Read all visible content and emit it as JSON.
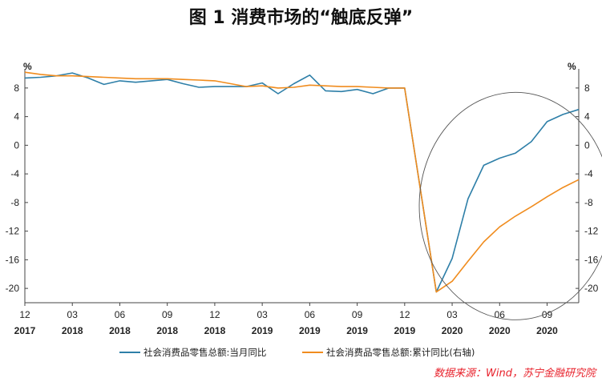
{
  "chart_data": {
    "type": "line",
    "title": "图 1   消费市场的“触底反弹”",
    "left_axis": {
      "unit": "%",
      "ylim": [
        -22,
        10
      ],
      "ticks": [
        8,
        4,
        0,
        -4,
        -8,
        -12,
        -16,
        -20
      ]
    },
    "right_axis": {
      "unit": "%",
      "ylim": [
        -22,
        10
      ],
      "ticks": [
        8,
        4,
        0,
        -4,
        -8,
        -12,
        -16,
        -20
      ]
    },
    "x_ticks": [
      {
        "month": "12",
        "year": "2017"
      },
      {
        "month": "03",
        "year": "2018"
      },
      {
        "month": "06",
        "year": "2018"
      },
      {
        "month": "09",
        "year": "2018"
      },
      {
        "month": "12",
        "year": "2018"
      },
      {
        "month": "03",
        "year": "2019"
      },
      {
        "month": "06",
        "year": "2019"
      },
      {
        "month": "09",
        "year": "2019"
      },
      {
        "month": "12",
        "year": "2019"
      },
      {
        "month": "03",
        "year": "2020"
      },
      {
        "month": "06",
        "year": "2020"
      },
      {
        "month": "09",
        "year": "2020"
      }
    ],
    "x": [
      "2017-12",
      "2018-01",
      "2018-02",
      "2018-03",
      "2018-04",
      "2018-05",
      "2018-06",
      "2018-07",
      "2018-08",
      "2018-09",
      "2018-10",
      "2018-11",
      "2018-12",
      "2019-01",
      "2019-02",
      "2019-03",
      "2019-04",
      "2019-05",
      "2019-06",
      "2019-07",
      "2019-08",
      "2019-09",
      "2019-10",
      "2019-11",
      "2019-12",
      "2020-01",
      "2020-02",
      "2020-03",
      "2020-04",
      "2020-05",
      "2020-06",
      "2020-07",
      "2020-08",
      "2020-09",
      "2020-10",
      "2020-11"
    ],
    "series": [
      {
        "name": "社会消费品零售总额:当月同比",
        "color": "#2e7fa8",
        "axis": "left",
        "values": [
          9.4,
          9.5,
          9.7,
          10.1,
          9.4,
          8.5,
          9.0,
          8.8,
          9.0,
          9.2,
          8.6,
          8.1,
          8.2,
          8.2,
          8.2,
          8.7,
          7.2,
          8.6,
          9.8,
          7.6,
          7.5,
          7.8,
          7.2,
          8.0,
          8.0,
          null,
          -20.5,
          -15.8,
          -7.5,
          -2.8,
          -1.8,
          -1.1,
          0.5,
          3.3,
          4.3,
          5.0
        ]
      },
      {
        "name": "社会消费品零售总额:累计同比(右轴)",
        "color": "#f08c1e",
        "axis": "right",
        "values": [
          10.2,
          9.9,
          9.7,
          9.7,
          9.6,
          9.5,
          9.4,
          9.3,
          9.3,
          9.3,
          9.2,
          9.1,
          9.0,
          8.6,
          8.2,
          8.3,
          8.0,
          8.1,
          8.4,
          8.3,
          8.2,
          8.2,
          8.1,
          8.0,
          8.0,
          null,
          -20.5,
          -19.0,
          -16.2,
          -13.5,
          -11.4,
          -9.9,
          -8.6,
          -7.2,
          -5.9,
          -4.8
        ]
      }
    ],
    "annotation": "ellipse highlighting 2020 rebound",
    "legend_position": "bottom"
  },
  "source": "数据来源：Wind，苏宁金融研究院"
}
